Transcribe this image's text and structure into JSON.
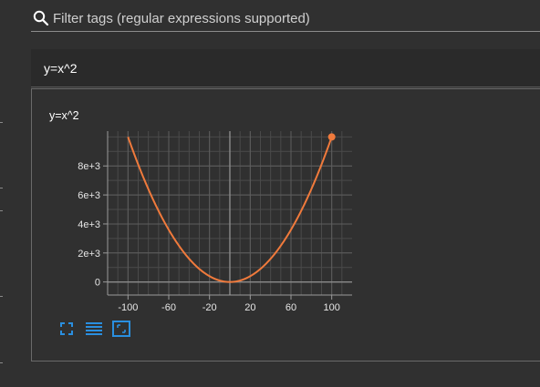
{
  "search": {
    "placeholder": "Filter tags (regular expressions supported)",
    "value": ""
  },
  "card": {
    "header_title": "y=x^2",
    "chart_title": "y=x^2"
  },
  "toolbar": {
    "buttons": [
      {
        "icon": "expand-icon"
      },
      {
        "icon": "list-icon"
      },
      {
        "icon": "fit-domain-icon"
      }
    ]
  },
  "colors": {
    "line": "#f07a3c",
    "accent_icon": "#2a8fe0",
    "background": "#303030"
  },
  "chart_data": {
    "type": "line",
    "title": "y=x^2",
    "xlabel": "",
    "ylabel": "",
    "xlim": [
      -120,
      120
    ],
    "ylim": [
      -900,
      10400
    ],
    "xticks": [
      -100,
      -60,
      -20,
      20,
      60,
      100
    ],
    "xtick_labels": [
      "-100",
      "-60",
      "-20",
      "20",
      "60",
      "100"
    ],
    "yticks": [
      0,
      2000,
      4000,
      6000,
      8000
    ],
    "ytick_labels": [
      "0",
      "2e+3",
      "4e+3",
      "6e+3",
      "8e+3"
    ],
    "grid": true,
    "series": [
      {
        "function": "y=x^2",
        "x_range": [
          -100,
          100
        ],
        "highlight_point": {
          "x": 100,
          "y": 10000
        }
      }
    ]
  }
}
